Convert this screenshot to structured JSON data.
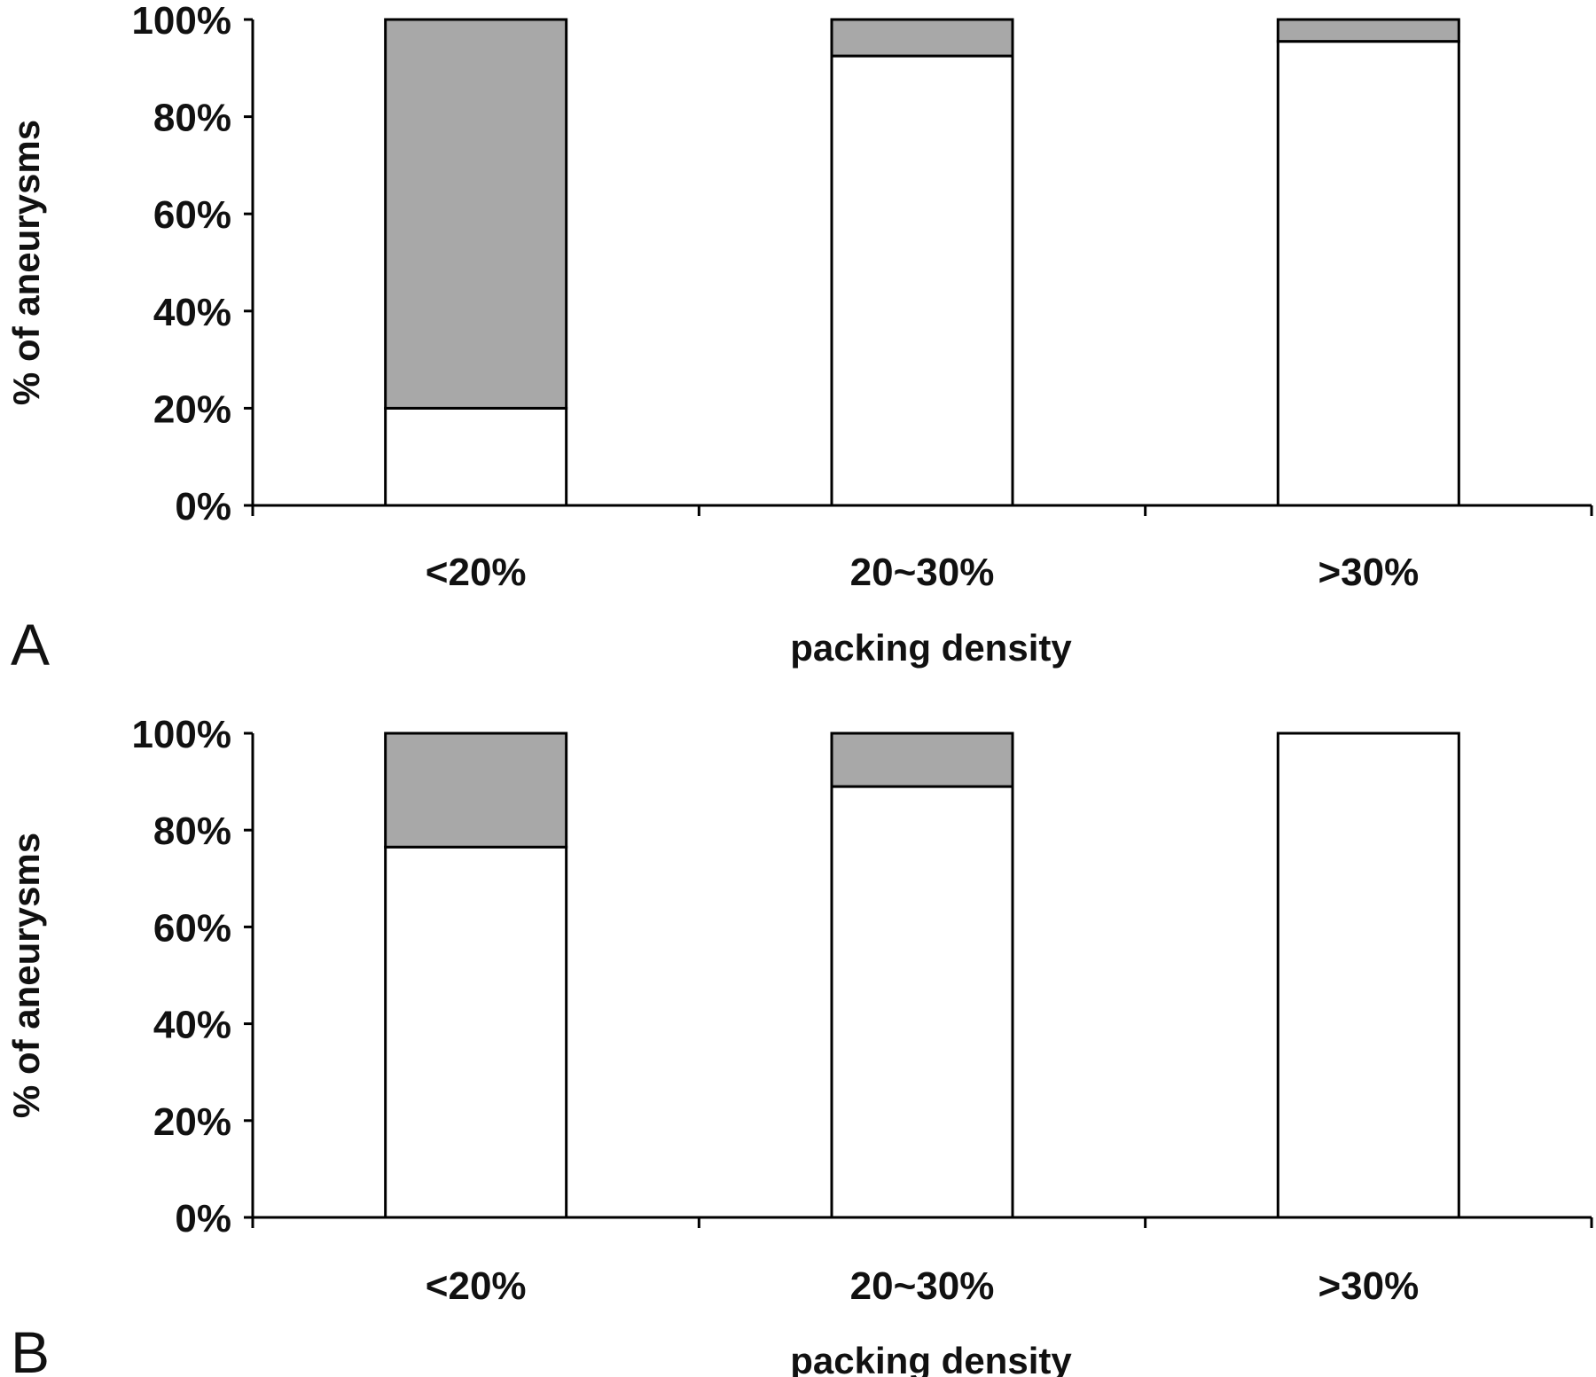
{
  "chart_data": [
    {
      "panel": "A",
      "type": "bar",
      "stacked": true,
      "categories": [
        "<20%",
        "20~30%",
        ">30%"
      ],
      "series": [
        {
          "values": [
            20,
            92.5,
            95.5
          ],
          "color": "#ffffff"
        },
        {
          "values": [
            80,
            7.5,
            4.5
          ],
          "color": "#a8a8a8"
        }
      ],
      "ylabel": "% of aneurysms",
      "xlabel": "packing density",
      "ylim": [
        0,
        100
      ],
      "yticks": [
        "0%",
        "20%",
        "40%",
        "60%",
        "80%",
        "100%"
      ],
      "grid": false
    },
    {
      "panel": "B",
      "type": "bar",
      "stacked": true,
      "categories": [
        "<20%",
        "20~30%",
        ">30%"
      ],
      "series": [
        {
          "values": [
            76.5,
            89,
            100
          ],
          "color": "#ffffff"
        },
        {
          "values": [
            23.5,
            11,
            0
          ],
          "color": "#a8a8a8"
        }
      ],
      "ylabel": "% of aneurysms",
      "xlabel": "packing density",
      "ylim": [
        0,
        100
      ],
      "yticks": [
        "0%",
        "20%",
        "40%",
        "60%",
        "80%",
        "100%"
      ],
      "grid": false
    }
  ]
}
